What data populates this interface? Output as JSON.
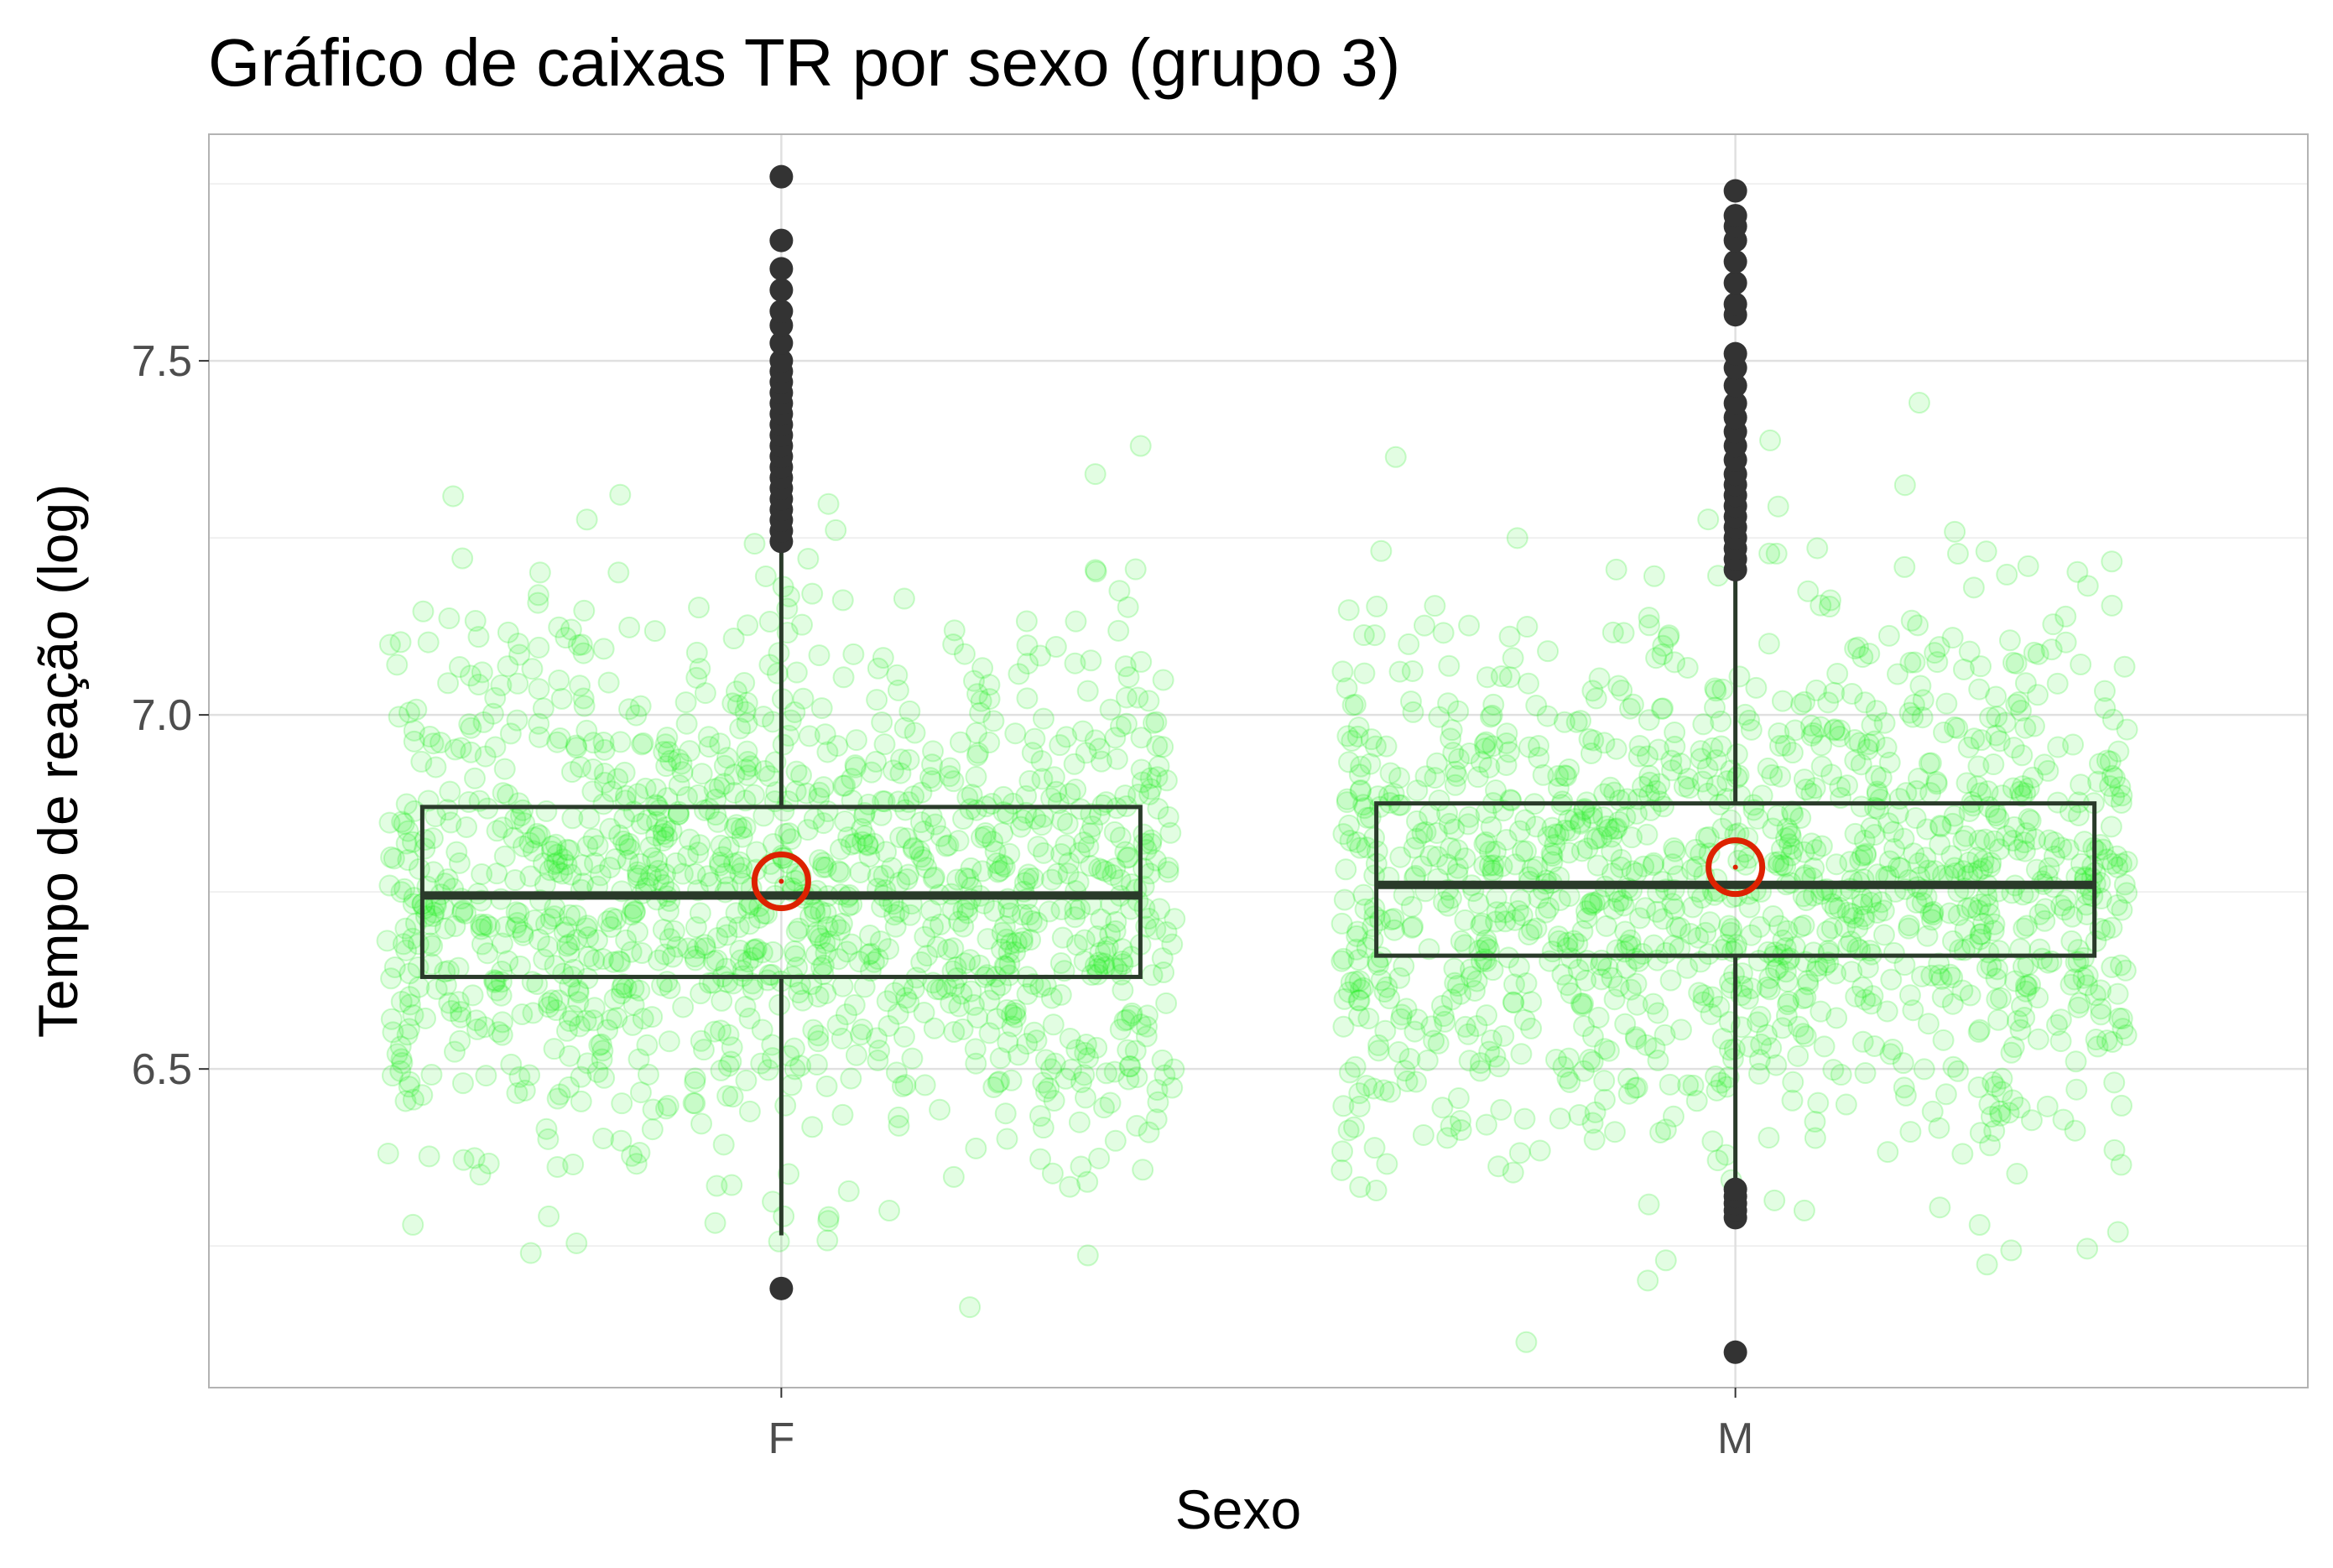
{
  "chart_data": {
    "type": "box",
    "title": "Gráfico de caixas TR por sexo (grupo 3)",
    "xlabel": "Sexo",
    "ylabel": "Tempo de reação (log)",
    "categories": [
      "F",
      "M"
    ],
    "ylim": [
      6.05,
      7.82
    ],
    "yticks": [
      6.5,
      7.0,
      7.5
    ],
    "ytick_labels": [
      "6.5",
      "7.0",
      "7.5"
    ],
    "grid": true,
    "legend": "none",
    "boxes": [
      {
        "category": "F",
        "whisker_low": 6.265,
        "q1": 6.63,
        "median": 6.745,
        "q3": 6.87,
        "whisker_high": 7.235,
        "mean": 6.765,
        "outliers": [
          6.19,
          7.245,
          7.26,
          7.275,
          7.29,
          7.305,
          7.32,
          7.335,
          7.35,
          7.365,
          7.38,
          7.395,
          7.41,
          7.425,
          7.44,
          7.455,
          7.47,
          7.485,
          7.5,
          7.525,
          7.55,
          7.57,
          7.6,
          7.63,
          7.67,
          7.76
        ]
      },
      {
        "category": "M",
        "whisker_low": 6.33,
        "q1": 6.66,
        "median": 6.76,
        "q3": 6.875,
        "whisker_high": 7.195,
        "mean": 6.785,
        "outliers": [
          6.1,
          6.29,
          6.3,
          6.31,
          6.32,
          6.33,
          7.205,
          7.22,
          7.235,
          7.25,
          7.265,
          7.28,
          7.295,
          7.31,
          7.325,
          7.34,
          7.36,
          7.38,
          7.4,
          7.42,
          7.44,
          7.465,
          7.49,
          7.51,
          7.565,
          7.58,
          7.61,
          7.64,
          7.67,
          7.69,
          7.705,
          7.74
        ]
      }
    ],
    "points": {
      "count_per_group": 1300,
      "spread_sd": 0.19,
      "color": "#22ee22"
    },
    "colors": {
      "box_stroke": "#2a3a2a",
      "outlier": "#333333",
      "mean_marker": "#dd2200",
      "jitter": "#22ee22",
      "grid": "#e0e0e0",
      "panel_border": "#b3b3b3"
    }
  }
}
